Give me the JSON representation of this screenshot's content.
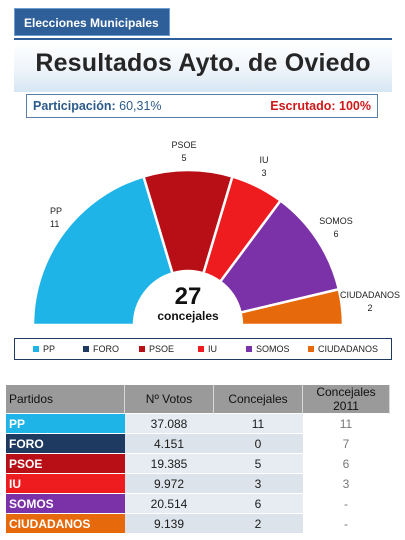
{
  "header": {
    "tab_label": "Elecciones Municipales",
    "title": "Resultados Ayto. de Oviedo"
  },
  "stats": {
    "participation_label": "Participación:",
    "participation_value": "60,31%",
    "counted_label": "Escrutado:",
    "counted_value": "100%"
  },
  "chart_data": {
    "type": "pie",
    "subtype": "semicircle-parliament",
    "total_seats": 27,
    "center_value": "27",
    "center_label": "concejales",
    "categories": [
      "PP",
      "FORO",
      "PSOE",
      "IU",
      "SOMOS",
      "CIUDADANOS"
    ],
    "values": [
      11,
      0,
      5,
      3,
      6,
      2
    ],
    "colors": [
      "#1fb4e8",
      "#1f3a60",
      "#b80f16",
      "#ee1c1f",
      "#7b31a8",
      "#e6690b"
    ],
    "slice_labels": [
      {
        "name": "PP",
        "seats": "11"
      },
      {
        "name": "PSOE",
        "seats": "5"
      },
      {
        "name": "IU",
        "seats": "3"
      },
      {
        "name": "SOMOS",
        "seats": "6"
      },
      {
        "name": "CIUDADANOS",
        "seats": "2"
      }
    ]
  },
  "legend": {
    "items": [
      {
        "label": "PP",
        "color": "#1fb4e8"
      },
      {
        "label": "FORO",
        "color": "#1f3a60"
      },
      {
        "label": "PSOE",
        "color": "#b80f16"
      },
      {
        "label": "IU",
        "color": "#ee1c1f"
      },
      {
        "label": "SOMOS",
        "color": "#7b31a8"
      },
      {
        "label": "CIUDADANOS",
        "color": "#e6690b"
      }
    ]
  },
  "table": {
    "headers": [
      "Partidos",
      "Nº Votos",
      "Concejales",
      "Concejales 2011"
    ],
    "rows": [
      {
        "party": "PP",
        "votes": "37.088",
        "seats": "11",
        "seats_2011": "11",
        "color": "#1fb4e8"
      },
      {
        "party": "FORO",
        "votes": "4.151",
        "seats": "0",
        "seats_2011": "7",
        "color": "#1f3a60"
      },
      {
        "party": "PSOE",
        "votes": "19.385",
        "seats": "5",
        "seats_2011": "6",
        "color": "#b80f16"
      },
      {
        "party": "IU",
        "votes": "9.972",
        "seats": "3",
        "seats_2011": "3",
        "color": "#ee1c1f"
      },
      {
        "party": "SOMOS",
        "votes": "20.514",
        "seats": "6",
        "seats_2011": "-",
        "color": "#7b31a8"
      },
      {
        "party": "CIUDADANOS",
        "votes": "9.139",
        "seats": "2",
        "seats_2011": "-",
        "color": "#e6690b"
      }
    ]
  }
}
